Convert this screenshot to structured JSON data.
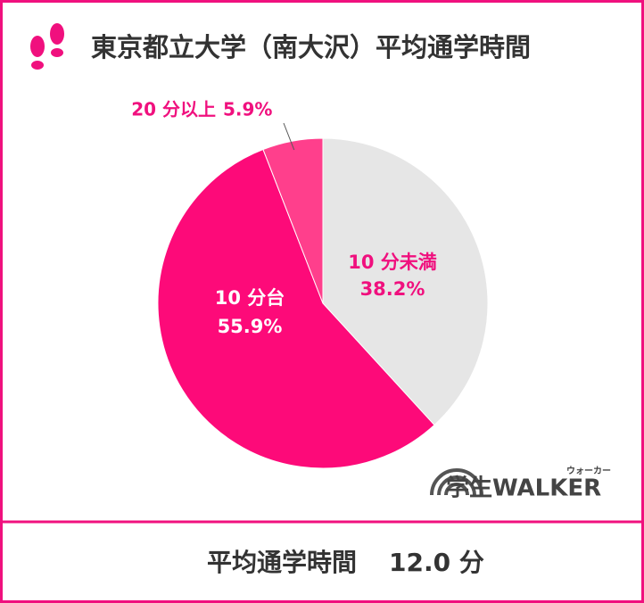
{
  "chart_data": {
    "type": "pie",
    "title": "東京都立大学（南大沢）平均通学時間",
    "categories": [
      "10 分未満",
      "10 分台",
      "20 分以上"
    ],
    "values": [
      38.2,
      55.9,
      5.9
    ],
    "value_labels": [
      "38.2%",
      "55.9%",
      "5.9%"
    ],
    "colors": [
      "#e6e6e6",
      "#fd0a79",
      "#ff3f8c"
    ],
    "label_colors": [
      "#f0107e",
      "#ffffff",
      "#f0107e"
    ]
  },
  "footer": {
    "label": "平均通学時間",
    "value": "12.0 分"
  },
  "logo": {
    "text": "学生WALKER",
    "ruby": "ウォーカー"
  }
}
